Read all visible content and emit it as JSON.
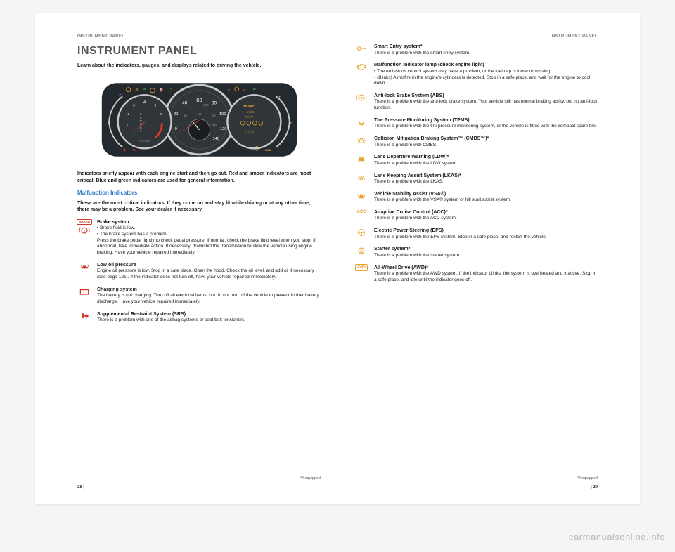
{
  "header": {
    "left": "INSTRUMENT PANEL",
    "right": "INSTRUMENT PANEL"
  },
  "title": "INSTRUMENT PANEL",
  "lead": "Learn about the indicators, gauges, and displays related to driving the vehicle.",
  "clusterNote1": "Indicators briefly appear with each engine start and then go out. Red and amber indicators are most critical. Blue and green indicators are used for general information.",
  "subhead": "Malfunction Indicators",
  "clusterNote2": "These are the most critical indicators. If they come on and stay lit while driving or at any other time, there may be a problem. See your dealer if necessary.",
  "cluster": {
    "bgColor": "#24292d",
    "faceColor": "#2f3539",
    "ringColor": "#c8ccce",
    "accentRed": "#d23a2a",
    "accentAmber": "#e6a32b",
    "accentGreen": "#58b85a",
    "accentBlue": "#4aa0e8",
    "textColor": "#ffffff",
    "speedo": {
      "unit": "mph",
      "ticks": [
        0,
        20,
        40,
        60,
        80,
        100,
        120,
        140
      ],
      "kmTicks": [
        0,
        50,
        100,
        150,
        200
      ]
    },
    "tach": {
      "label": "x1000/min",
      "ticks": [
        1,
        2,
        3,
        4,
        5,
        6,
        7,
        8
      ],
      "gears": [
        "P",
        "R",
        "N",
        "D",
        "S",
        "L"
      ]
    },
    "rightLabels": [
      "BRAKE",
      "ACC",
      "LKAS"
    ],
    "fuel": {
      "labels": [
        "E",
        "F"
      ]
    },
    "temp": {
      "labels": [
        "C",
        "H"
      ]
    },
    "bottomRight": "AWD"
  },
  "leftItems": [
    {
      "icon": {
        "type": "brake",
        "color": "#d23a2a"
      },
      "title": "Brake system",
      "desc": "• Brake fluid is low.\n• The brake system has a problem.\nPress the brake pedal lightly to check pedal pressure. If normal, check the brake fluid level when you stop. If abnormal, take immediate action. If necessary, downshift the transmission to slow the vehicle using engine braking. Have your vehicle repaired immediately."
    },
    {
      "icon": {
        "type": "oil",
        "color": "#d23a2a"
      },
      "title": "Low oil pressure",
      "desc": "Engine oil pressure is low. Stop in a safe place. Open the hood. Check the oil level, and add oil if necessary (see page 121). If the indicator does not turn off, have your vehicle repaired immediately."
    },
    {
      "icon": {
        "type": "battery",
        "color": "#d23a2a"
      },
      "title": "Charging system",
      "desc": "The battery is not charging. Turn off all electrical items, but do not turn off the vehicle to prevent further battery discharge. Have your vehicle repaired immediately."
    },
    {
      "icon": {
        "type": "srs",
        "color": "#d23a2a"
      },
      "title": "Supplemental Restraint System (SRS)",
      "desc": "There is a problem with one of the airbag systems or seat belt tensioners."
    }
  ],
  "rightItems": [
    {
      "icon": {
        "type": "key",
        "color": "#e6a32b"
      },
      "title": "Smart Entry system*",
      "desc": "There is a problem with the smart entry system."
    },
    {
      "icon": {
        "type": "engine",
        "color": "#e6a32b"
      },
      "title": "Malfunction indicator lamp (check engine light)",
      "desc": "• The emissions control system may have a problem, or the fuel cap is loose or missing.\n• (Blinks) A misfire in the engine's cylinders is detected. Stop in a safe place, and wait for the engine to cool down."
    },
    {
      "icon": {
        "type": "abs",
        "color": "#e6a32b"
      },
      "title": "Anti-lock Brake System (ABS)",
      "desc": "There is a problem with the anti-lock brake system. Your vehicle still has normal braking ability, but no anti-lock function."
    },
    {
      "icon": {
        "type": "tpms",
        "color": "#e6a32b"
      },
      "title": "Tire Pressure Monitoring System (TPMS)",
      "desc": "There is a problem with the tire pressure monitoring system, or the vehicle is fitted with the compact spare tire."
    },
    {
      "icon": {
        "type": "cmbs",
        "color": "#e6a32b"
      },
      "title": "Collision Mitigation Braking System™ (CMBS™)*",
      "desc": "There is a problem with CMBS."
    },
    {
      "icon": {
        "type": "ldw",
        "color": "#e6a32b"
      },
      "title": "Lane Departure Warning (LDW)*",
      "desc": "There is a problem with the LDW system."
    },
    {
      "icon": {
        "type": "lkas",
        "color": "#e6a32b"
      },
      "title": "Lane Keeping Assist System (LKAS)*",
      "desc": "There is a problem with the LKAS."
    },
    {
      "icon": {
        "type": "vsa",
        "color": "#e6a32b"
      },
      "title": "Vehicle Stability Assist (VSA®)",
      "desc": "There is a problem with the VSA® system or hill start assist system."
    },
    {
      "icon": {
        "type": "acc",
        "color": "#e6a32b"
      },
      "title": "Adaptive Cruise Control (ACC)*",
      "desc": "There is a problem with the ACC system."
    },
    {
      "icon": {
        "type": "eps",
        "color": "#e6a32b"
      },
      "title": "Electric Power Steering (EPS)",
      "desc": "There is a problem with the EPS system. Stop in a safe place, and restart the vehicle."
    },
    {
      "icon": {
        "type": "starter",
        "color": "#e6a32b"
      },
      "title": "Starter system*",
      "desc": "There is a problem with the starter system."
    },
    {
      "icon": {
        "type": "awd",
        "color": "#e6a32b"
      },
      "title": "All-Wheel Drive (AWD)*",
      "desc": "There is a problem with the AWD system. If the indicator blinks, the system is overheated and inactive. Stop in a safe place, and idle until the indicator goes off."
    }
  ],
  "footnotes": {
    "left": "*if equipped",
    "right": "*if equipped"
  },
  "pageNums": {
    "left": "28  |",
    "right": "|  29"
  },
  "watermark": "carmanualsonline.info"
}
